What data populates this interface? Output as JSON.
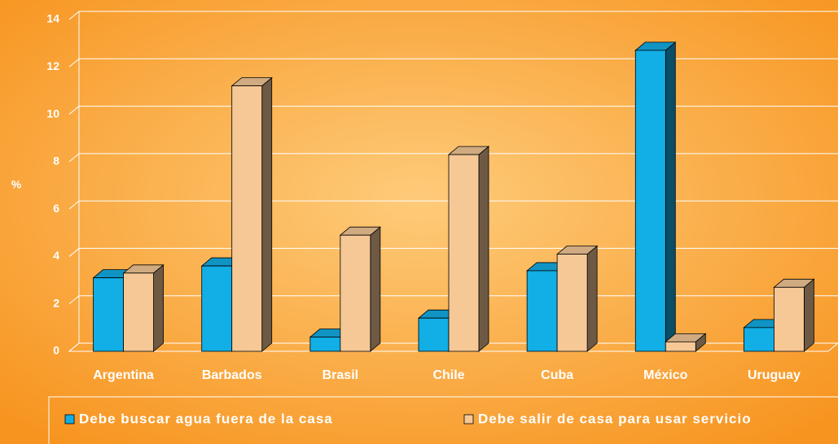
{
  "chart_data": {
    "type": "bar3d",
    "y_label": "%",
    "categories": [
      "Argentina",
      "Barbados",
      "Brasil",
      "Chile",
      "Cuba",
      "México",
      "Uruguay"
    ],
    "series": [
      {
        "name": "Debe buscar agua fuera de la casa",
        "color": "#12aee6",
        "values": [
          3.1,
          3.6,
          0.6,
          1.4,
          3.4,
          12.7,
          1.0
        ]
      },
      {
        "name": "Debe salir de casa para usar servicio",
        "color": "#f5c896",
        "values": [
          3.3,
          11.2,
          4.9,
          8.3,
          4.1,
          0.4,
          2.7
        ]
      }
    ],
    "ylim": [
      0,
      14
    ],
    "yticks": [
      0,
      2,
      4,
      6,
      8,
      10,
      12,
      14
    ],
    "grid": true
  }
}
